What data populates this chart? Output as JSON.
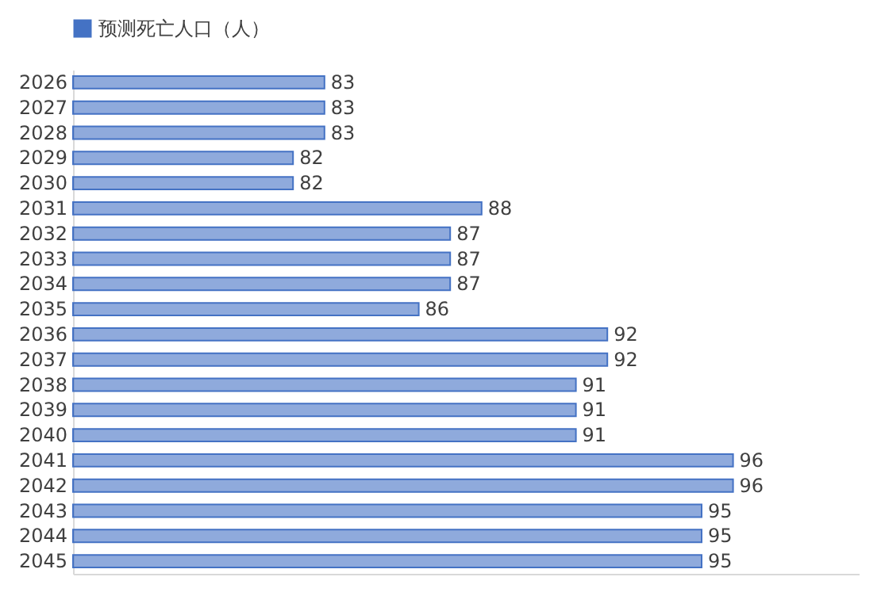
{
  "chart_data": {
    "type": "bar",
    "orientation": "horizontal",
    "categories": [
      "2026",
      "2027",
      "2028",
      "2029",
      "2030",
      "2031",
      "2032",
      "2033",
      "2034",
      "2035",
      "2036",
      "2037",
      "2038",
      "2039",
      "2040",
      "2041",
      "2042",
      "2043",
      "2044",
      "2045"
    ],
    "series": [
      {
        "name": "预测死亡人口（人）",
        "color": "#4472c4",
        "values": [
          83,
          83,
          83,
          82,
          82,
          88,
          87,
          87,
          87,
          86,
          92,
          92,
          91,
          91,
          91,
          96,
          96,
          95,
          95,
          95
        ]
      }
    ],
    "xlim": [
      75,
      100
    ],
    "data_labels": true,
    "legend": "top",
    "tick_labels": "y"
  }
}
